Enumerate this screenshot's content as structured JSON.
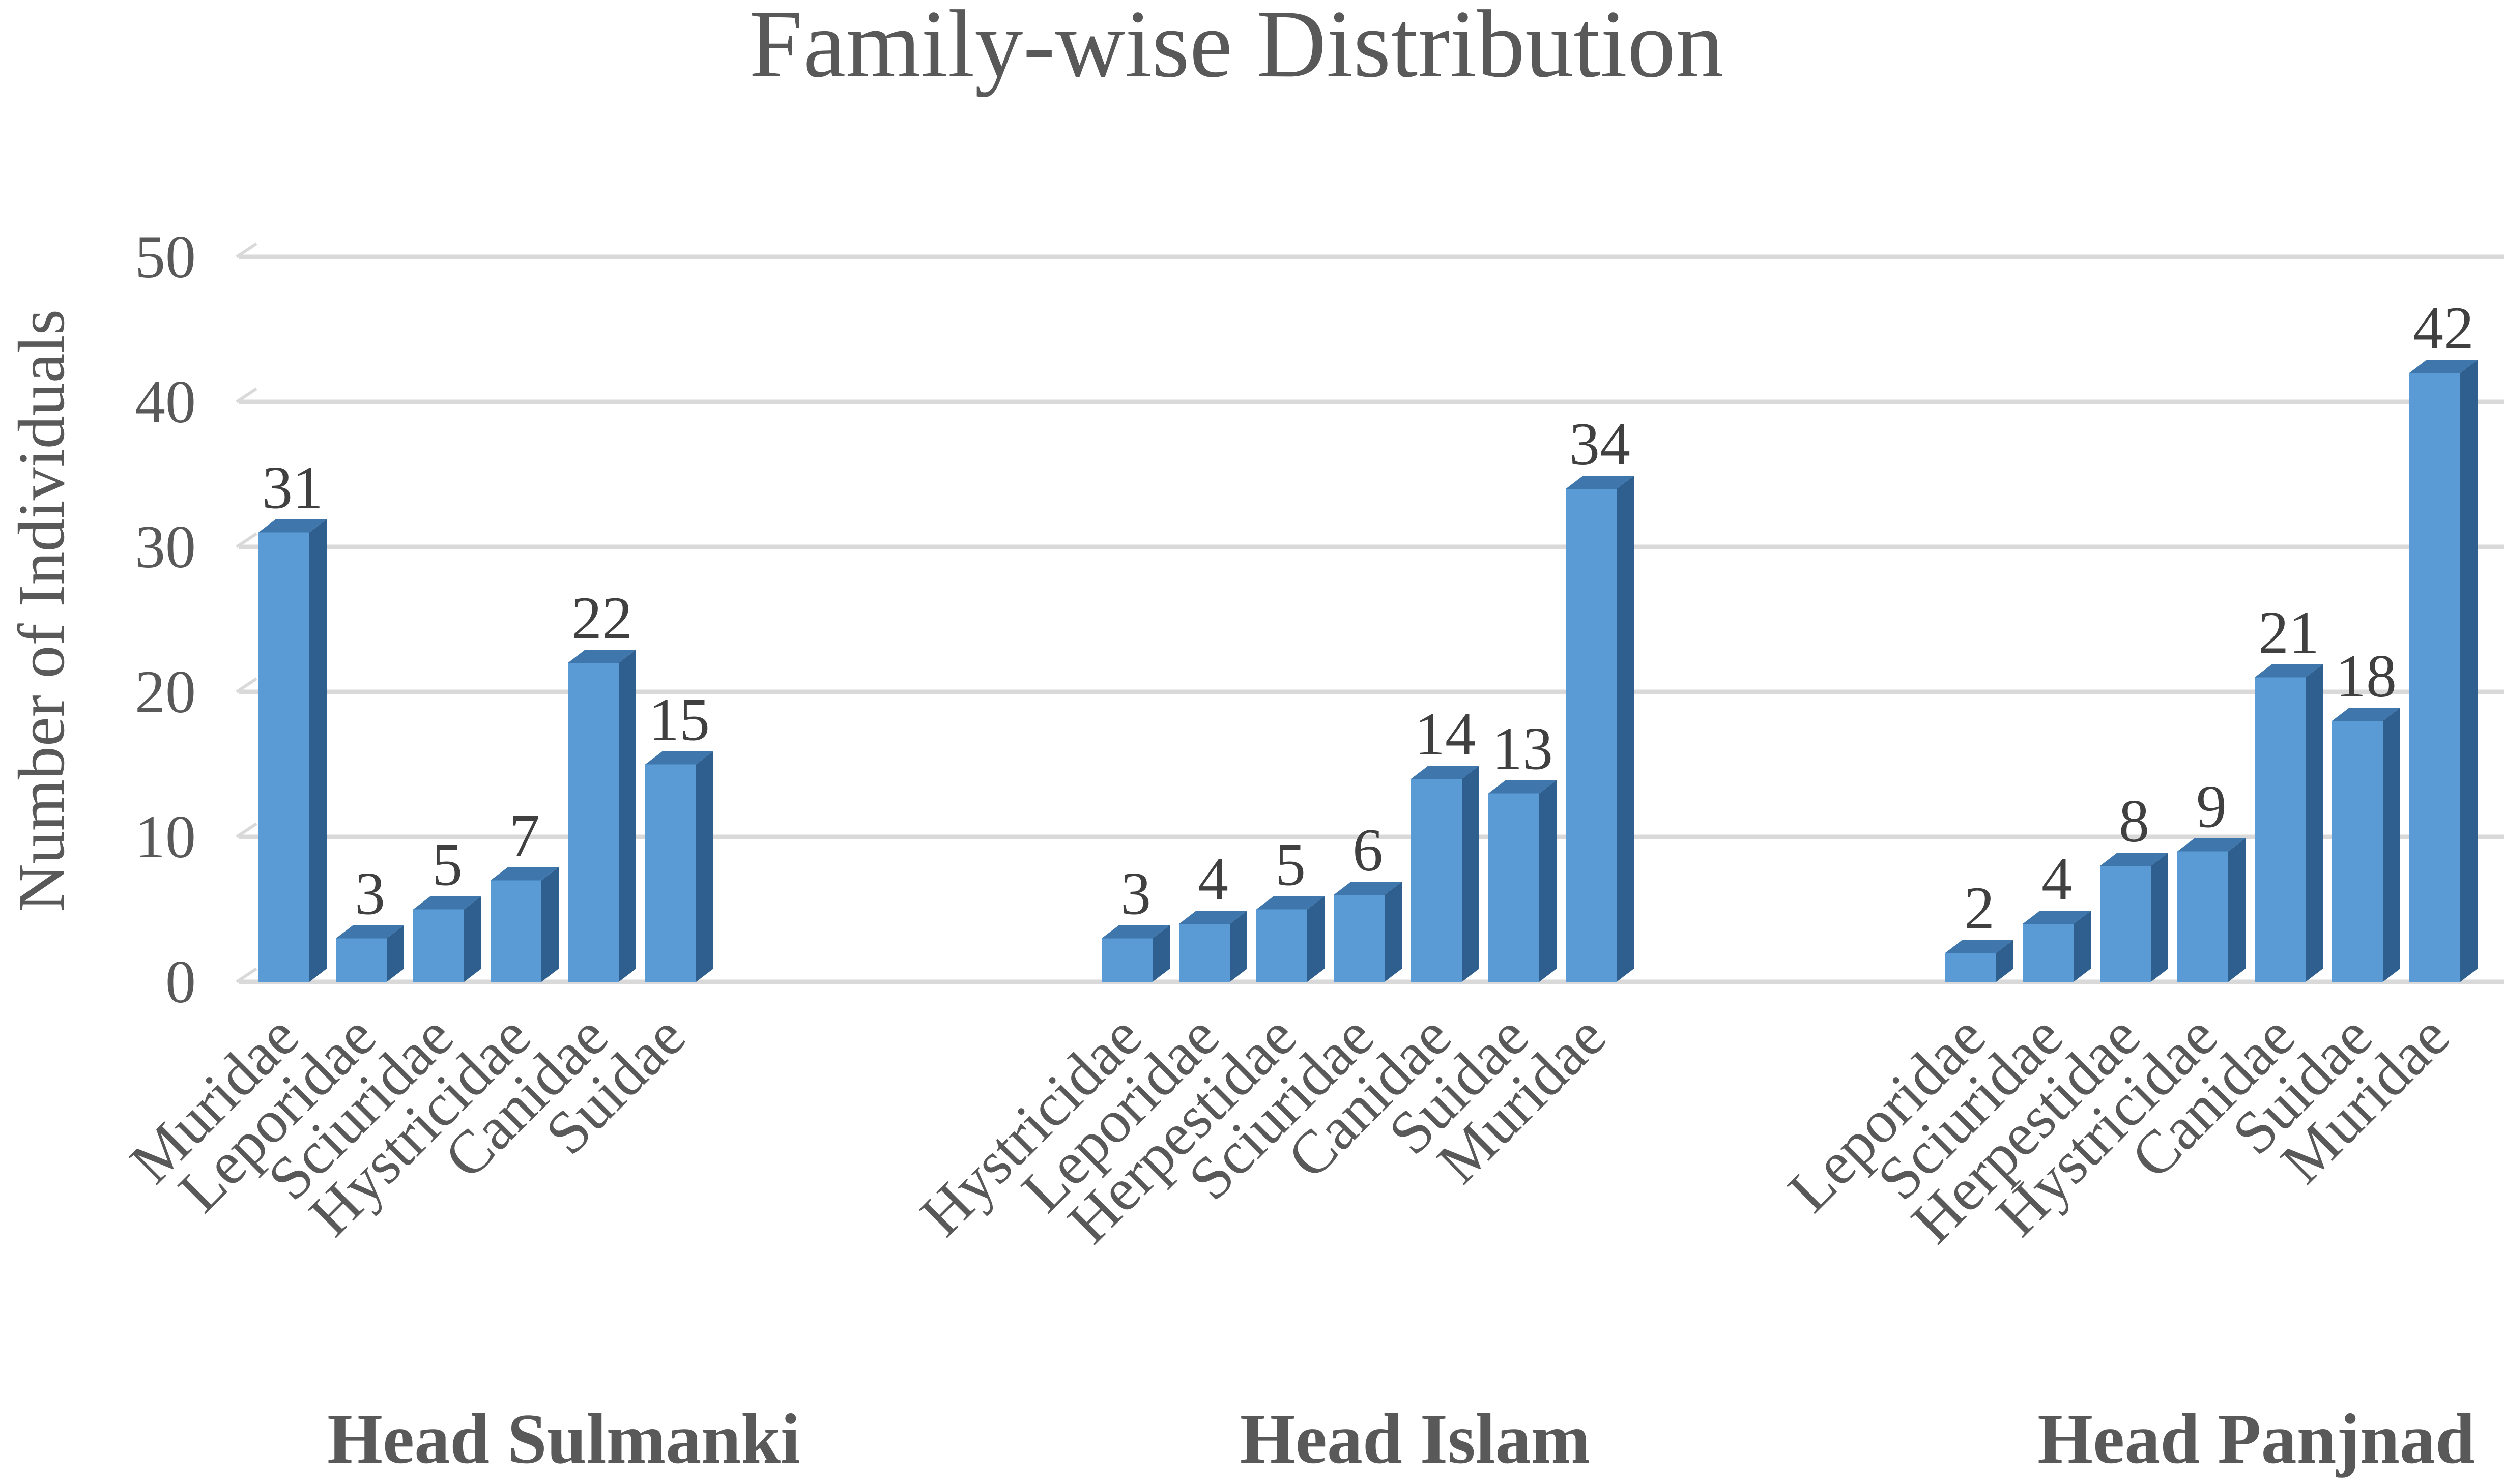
{
  "chart_data": {
    "type": "bar",
    "title": "Family-wise Distribution",
    "ylabel": "Number of Individuals",
    "ylim": [
      0,
      50
    ],
    "yticks": [
      0,
      10,
      20,
      30,
      40,
      50
    ],
    "grid": true,
    "bar_color": "#5b9bd5",
    "bar_side_color": "#2e5f8e",
    "bar_top_color": "#3f77ad",
    "groups": [
      {
        "name": "Head Sulmanki",
        "categories": [
          "Muridae",
          "Leporidae",
          "Sciuridae",
          "Hystricidae",
          "Canidae",
          "Suidae"
        ],
        "values": [
          31,
          3,
          5,
          7,
          22,
          15
        ]
      },
      {
        "name": "Head Islam",
        "categories": [
          "Hystricidae",
          "Leporidae",
          "Herpestidae",
          "Sciuridae",
          "Canidae",
          "Suidae",
          "Muridae"
        ],
        "values": [
          3,
          4,
          5,
          6,
          14,
          13,
          34
        ]
      },
      {
        "name": "Head Panjnad",
        "categories": [
          "Leporidae",
          "Sciuridae",
          "Herpestidae",
          "Hystricidae",
          "Canidae",
          "Suidae",
          "Muridae"
        ],
        "values": [
          2,
          4,
          8,
          9,
          21,
          18,
          42
        ]
      }
    ]
  }
}
